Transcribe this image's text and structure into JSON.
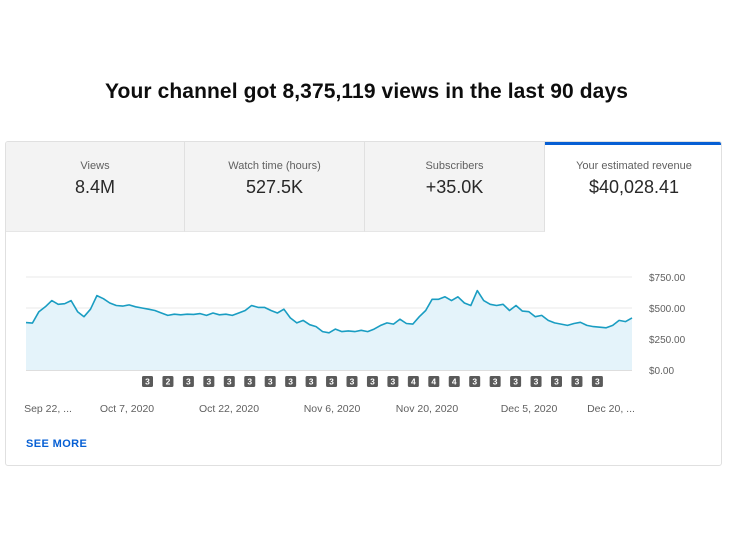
{
  "headline": "Your channel got 8,375,119 views in the last 90 days",
  "tabs": [
    {
      "label": "Views",
      "value": "8.4M"
    },
    {
      "label": "Watch time (hours)",
      "value": "527.5K"
    },
    {
      "label": "Subscribers",
      "value": "+35.0K"
    },
    {
      "label": "Your estimated revenue",
      "value": "$40,028.41",
      "selected": true
    }
  ],
  "see_more": "SEE MORE",
  "colors": {
    "line": "#1a9dc2",
    "area": "#e4f3fa",
    "accent": "#065fd4",
    "marker": "#5a5a5a"
  },
  "chart_data": {
    "type": "area",
    "series": [
      {
        "values": [
          382,
          378,
          470,
          510,
          560,
          530,
          535,
          560,
          470,
          430,
          490,
          600,
          575,
          540,
          520,
          515,
          525,
          510,
          500,
          490,
          480,
          460,
          440,
          450,
          445,
          450,
          448,
          455,
          440,
          460,
          445,
          450,
          440,
          460,
          480,
          520,
          505,
          505,
          480,
          460,
          490,
          420,
          380,
          400,
          365,
          350,
          310,
          300,
          330,
          310,
          315,
          310,
          320,
          310,
          330,
          360,
          380,
          370,
          410,
          375,
          370,
          430,
          480,
          570,
          570,
          590,
          560,
          590,
          540,
          520,
          640,
          560,
          530,
          520,
          530,
          480,
          520,
          475,
          470,
          430,
          440,
          400,
          380,
          370,
          360,
          375,
          385,
          360,
          350,
          345,
          340,
          360,
          400,
          390,
          420
        ]
      }
    ],
    "ylim": [
      0,
      750
    ],
    "yticks": [
      "$750.00",
      "$500.00",
      "$250.00",
      "$0.00"
    ],
    "xticks": [
      "Sep 22, ...",
      "Oct 7, 2020",
      "Oct 22, 2020",
      "Nov 6, 2020",
      "Nov 20, 2020",
      "Dec 5, 2020",
      "Dec 20, ..."
    ],
    "markers": [
      "3",
      "2",
      "3",
      "3",
      "3",
      "3",
      "3",
      "3",
      "3",
      "3",
      "3",
      "3",
      "3",
      "4",
      "4",
      "4",
      "3",
      "3",
      "3",
      "3",
      "3",
      "3",
      "3"
    ],
    "grid": true
  }
}
